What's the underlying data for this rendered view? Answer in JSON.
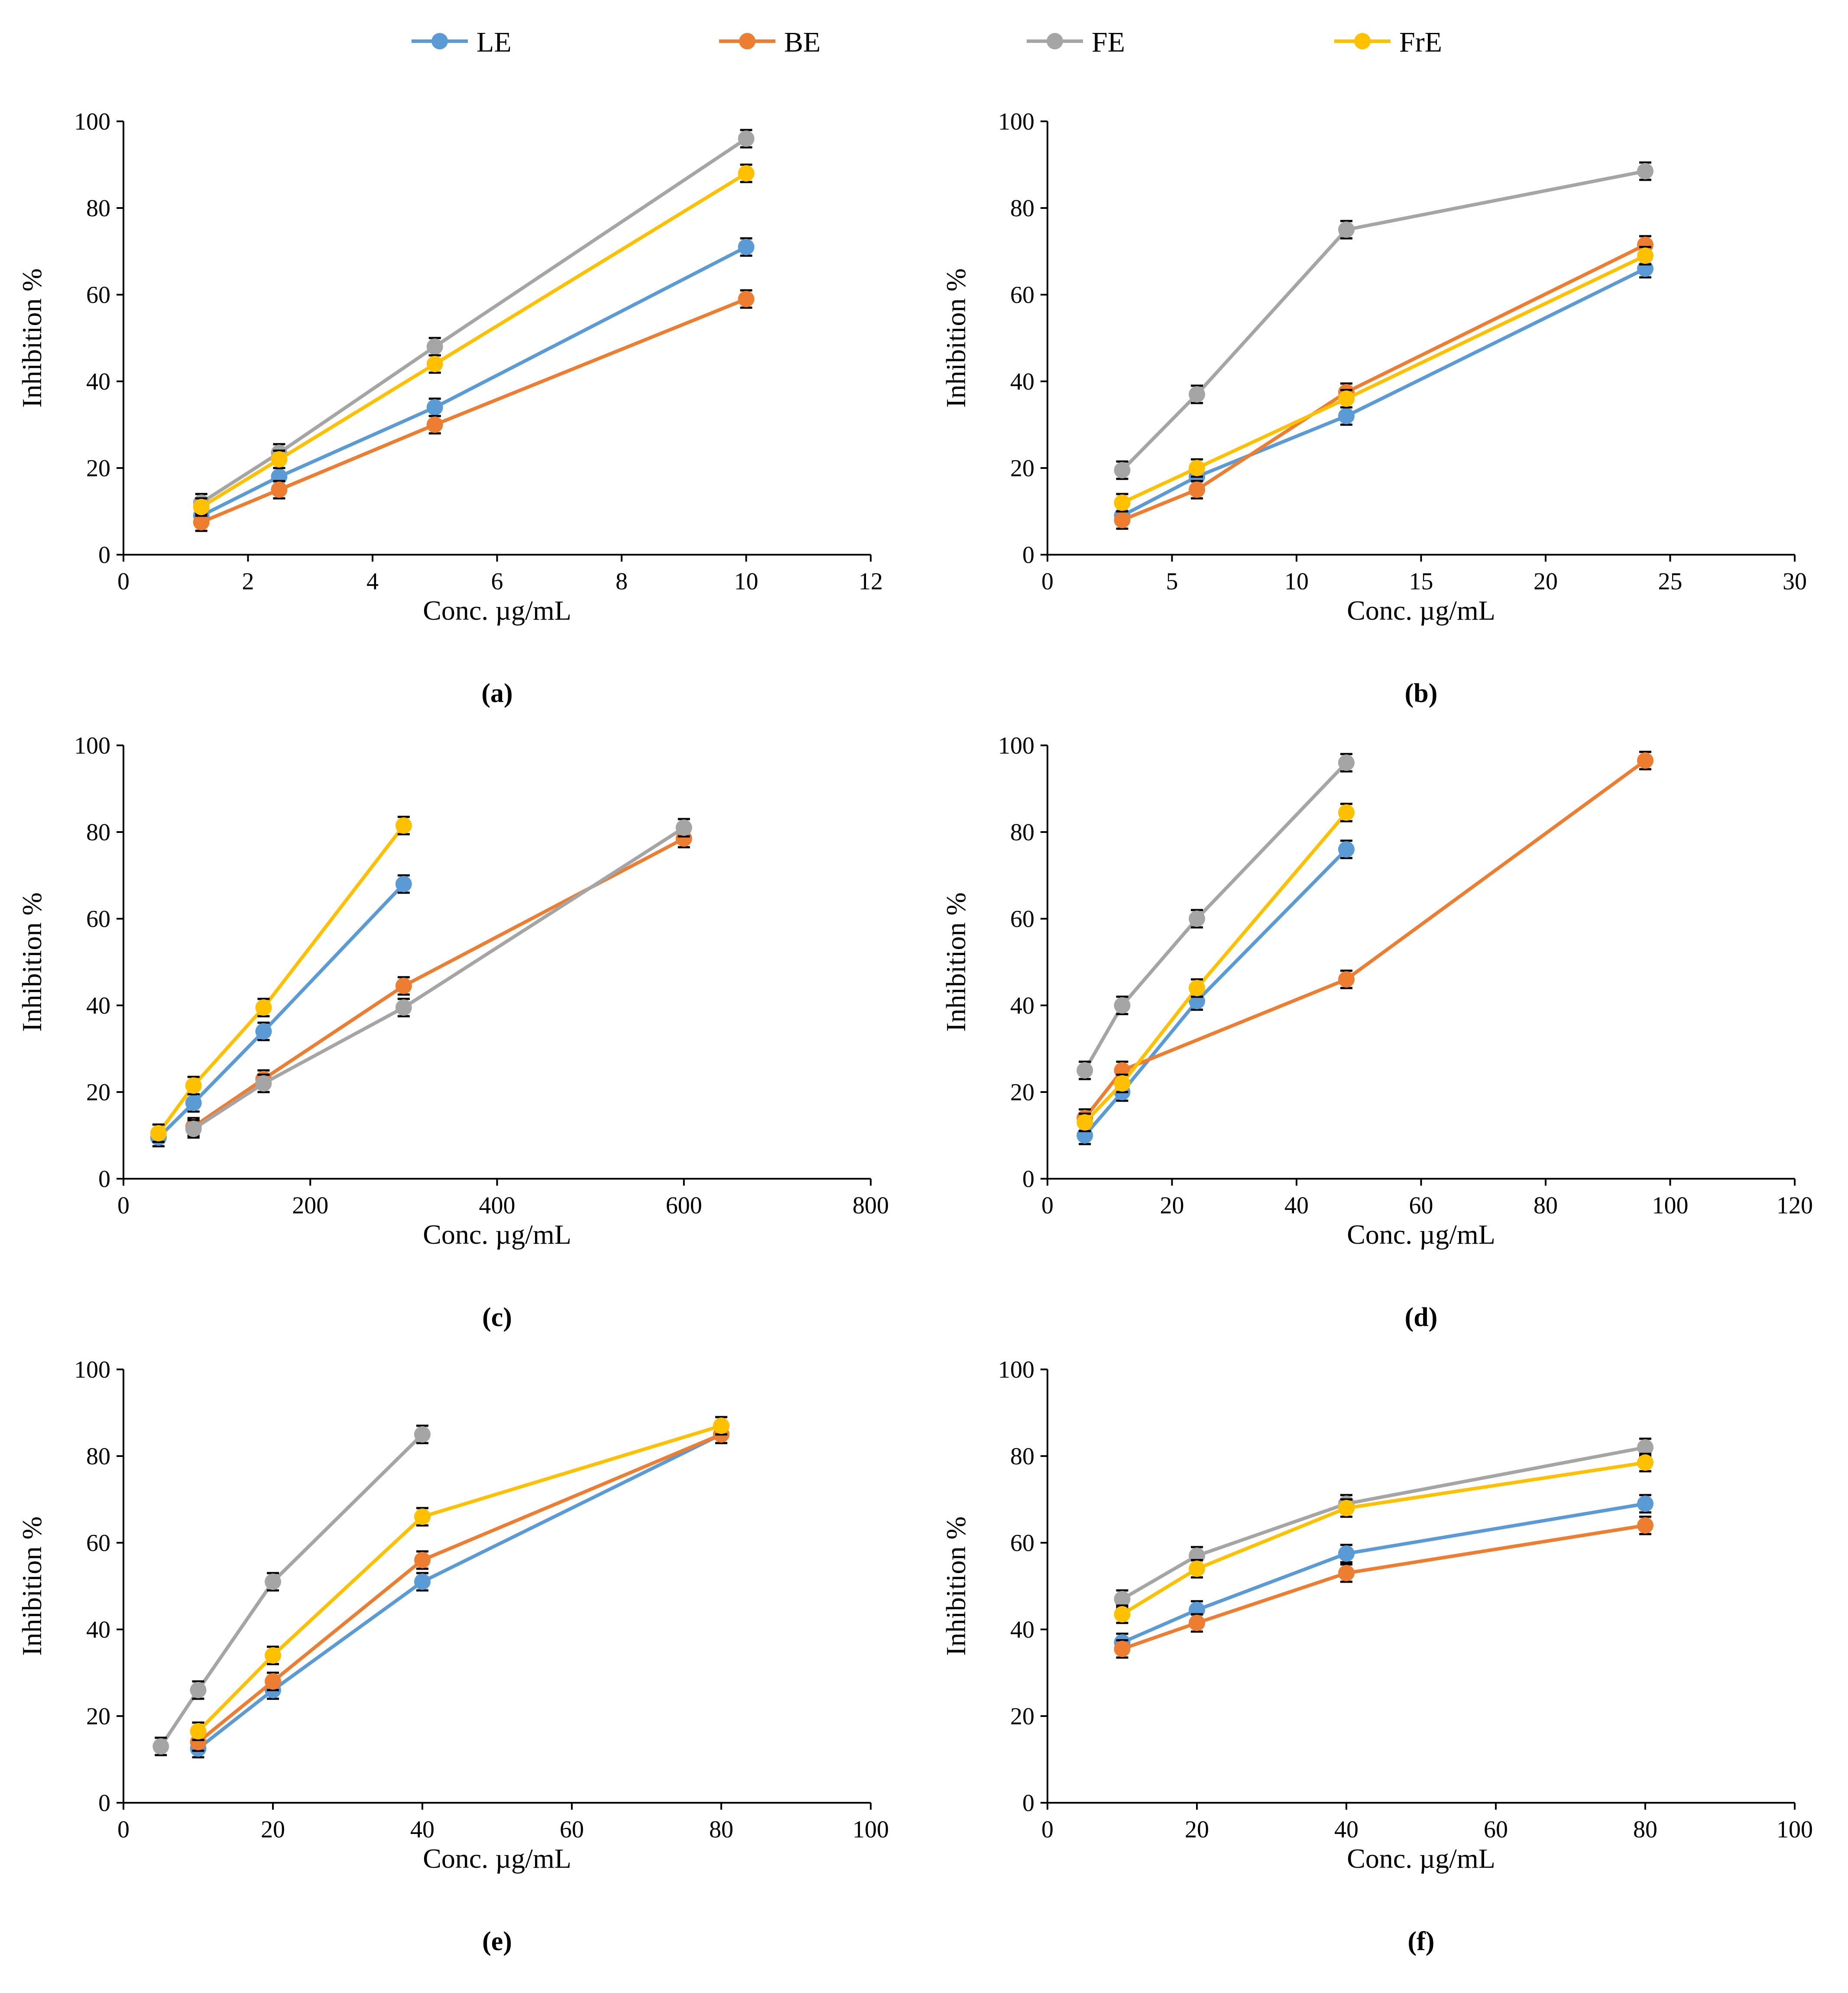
{
  "legend": [
    {
      "name": "LE",
      "color": "#5b9bd5"
    },
    {
      "name": "BE",
      "color": "#ed7d31"
    },
    {
      "name": "FE",
      "color": "#a5a5a5"
    },
    {
      "name": "FrE",
      "color": "#ffc000"
    }
  ],
  "chart_data": [
    {
      "type": "line",
      "panel_label": "(a)",
      "xlabel": "Conc. µg/mL",
      "ylabel": "Inhibition %",
      "xlim": [
        0,
        12
      ],
      "ylim": [
        0,
        100
      ],
      "xticks": [
        0,
        2,
        4,
        6,
        8,
        10,
        12
      ],
      "yticks": [
        0,
        20,
        40,
        60,
        80,
        100
      ],
      "series": [
        {
          "name": "LE",
          "color": "#5b9bd5",
          "x": [
            1.25,
            2.5,
            5,
            10
          ],
          "y": [
            9,
            18,
            34,
            71
          ]
        },
        {
          "name": "BE",
          "color": "#ed7d31",
          "x": [
            1.25,
            2.5,
            5,
            10
          ],
          "y": [
            7.5,
            15,
            30,
            59
          ]
        },
        {
          "name": "FE",
          "color": "#a5a5a5",
          "x": [
            1.25,
            2.5,
            5,
            10
          ],
          "y": [
            12,
            23.5,
            48,
            96
          ]
        },
        {
          "name": "FrE",
          "color": "#ffc000",
          "x": [
            1.25,
            2.5,
            5,
            10
          ],
          "y": [
            11,
            22,
            44,
            88
          ]
        }
      ]
    },
    {
      "type": "line",
      "panel_label": "(b)",
      "xlabel": "Conc. µg/mL",
      "ylabel": "Inhibition %",
      "xlim": [
        0,
        30
      ],
      "ylim": [
        0,
        100
      ],
      "xticks": [
        0,
        5,
        10,
        15,
        20,
        25,
        30
      ],
      "yticks": [
        0,
        20,
        40,
        60,
        80,
        100
      ],
      "series": [
        {
          "name": "LE",
          "color": "#5b9bd5",
          "x": [
            3,
            6,
            12,
            24
          ],
          "y": [
            9,
            18,
            32,
            66
          ]
        },
        {
          "name": "BE",
          "color": "#ed7d31",
          "x": [
            3,
            6,
            12,
            24
          ],
          "y": [
            8,
            15,
            37.5,
            71.5
          ]
        },
        {
          "name": "FE",
          "color": "#a5a5a5",
          "x": [
            3,
            6,
            12,
            24
          ],
          "y": [
            19.5,
            37,
            75,
            88.5
          ]
        },
        {
          "name": "FrE",
          "color": "#ffc000",
          "x": [
            3,
            6,
            12,
            24
          ],
          "y": [
            12,
            20,
            36,
            69
          ]
        }
      ]
    },
    {
      "type": "line",
      "panel_label": "(c)",
      "xlabel": "Conc. µg/mL",
      "ylabel": "Inhibition %",
      "xlim": [
        0,
        800
      ],
      "ylim": [
        0,
        100
      ],
      "xticks": [
        0,
        200,
        400,
        600,
        800
      ],
      "yticks": [
        0,
        20,
        40,
        60,
        80,
        100
      ],
      "series": [
        {
          "name": "LE",
          "color": "#5b9bd5",
          "x": [
            37.5,
            75,
            150,
            300
          ],
          "y": [
            9.5,
            17.5,
            34,
            68
          ]
        },
        {
          "name": "BE",
          "color": "#ed7d31",
          "x": [
            75,
            150,
            300,
            600
          ],
          "y": [
            12,
            23,
            44.5,
            78.5
          ]
        },
        {
          "name": "FE",
          "color": "#a5a5a5",
          "x": [
            75,
            150,
            300,
            600
          ],
          "y": [
            11.5,
            22,
            39.5,
            81
          ]
        },
        {
          "name": "FrE",
          "color": "#ffc000",
          "x": [
            37.5,
            75,
            150,
            300
          ],
          "y": [
            10.5,
            21.5,
            39.5,
            81.5
          ]
        }
      ]
    },
    {
      "type": "line",
      "panel_label": "(d)",
      "xlabel": "Conc. µg/mL",
      "ylabel": "Inhibition %",
      "xlim": [
        0,
        120
      ],
      "ylim": [
        0,
        100
      ],
      "xticks": [
        0,
        20,
        40,
        60,
        80,
        100,
        120
      ],
      "yticks": [
        0,
        20,
        40,
        60,
        80,
        100
      ],
      "series": [
        {
          "name": "LE",
          "color": "#5b9bd5",
          "x": [
            6,
            12,
            24,
            48
          ],
          "y": [
            10,
            20,
            41,
            76
          ]
        },
        {
          "name": "BE",
          "color": "#ed7d31",
          "x": [
            6,
            12,
            48,
            96
          ],
          "y": [
            14,
            25,
            46,
            96.5
          ]
        },
        {
          "name": "FE",
          "color": "#a5a5a5",
          "x": [
            6,
            12,
            24,
            48
          ],
          "y": [
            25,
            40,
            60,
            96
          ]
        },
        {
          "name": "FrE",
          "color": "#ffc000",
          "x": [
            6,
            12,
            24,
            48
          ],
          "y": [
            13,
            22,
            44,
            84.5
          ]
        }
      ]
    },
    {
      "type": "line",
      "panel_label": "(e)",
      "xlabel": "Conc. µg/mL",
      "ylabel": "Inhibition %",
      "xlim": [
        0,
        100
      ],
      "ylim": [
        0,
        100
      ],
      "xticks": [
        0,
        20,
        40,
        60,
        80,
        100
      ],
      "yticks": [
        0,
        20,
        40,
        60,
        80,
        100
      ],
      "series": [
        {
          "name": "LE",
          "color": "#5b9bd5",
          "x": [
            10,
            20,
            40,
            80
          ],
          "y": [
            12.5,
            26,
            51,
            85
          ]
        },
        {
          "name": "BE",
          "color": "#ed7d31",
          "x": [
            10,
            20,
            40,
            80
          ],
          "y": [
            14,
            28,
            56,
            85
          ]
        },
        {
          "name": "FE",
          "color": "#a5a5a5",
          "x": [
            5,
            10,
            20,
            40
          ],
          "y": [
            13,
            26,
            51,
            85
          ]
        },
        {
          "name": "FrE",
          "color": "#ffc000",
          "x": [
            10,
            20,
            40,
            80
          ],
          "y": [
            16.5,
            34,
            66,
            87
          ]
        }
      ]
    },
    {
      "type": "line",
      "panel_label": "(f)",
      "xlabel": "Conc. µg/mL",
      "ylabel": "Inhibition %",
      "xlim": [
        0,
        100
      ],
      "ylim": [
        0,
        100
      ],
      "xticks": [
        0,
        20,
        40,
        60,
        80,
        100
      ],
      "yticks": [
        0,
        20,
        40,
        60,
        80,
        100
      ],
      "series": [
        {
          "name": "LE",
          "color": "#5b9bd5",
          "x": [
            10,
            20,
            40,
            80
          ],
          "y": [
            37,
            44.5,
            57.5,
            69
          ]
        },
        {
          "name": "BE",
          "color": "#ed7d31",
          "x": [
            10,
            20,
            40,
            80
          ],
          "y": [
            35.5,
            41.5,
            53,
            64
          ]
        },
        {
          "name": "FE",
          "color": "#a5a5a5",
          "x": [
            10,
            20,
            40,
            80
          ],
          "y": [
            47,
            57,
            69,
            82
          ]
        },
        {
          "name": "FrE",
          "color": "#ffc000",
          "x": [
            10,
            20,
            40,
            80
          ],
          "y": [
            43.5,
            54,
            68,
            78.5
          ]
        }
      ]
    }
  ]
}
